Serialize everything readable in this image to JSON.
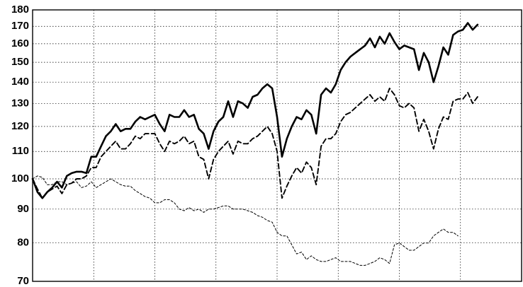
{
  "chart_data": {
    "type": "line",
    "title": "",
    "xlabel": "",
    "ylabel": "",
    "y_scale": "log",
    "ylim": [
      70,
      180
    ],
    "y_ticks": [
      70,
      80,
      90,
      100,
      110,
      120,
      130,
      140,
      150,
      160,
      170,
      180
    ],
    "y_tick_labels": [
      "70",
      "80",
      "90",
      "100",
      "110",
      "120",
      "130",
      "140",
      "150",
      "160",
      "170",
      "180"
    ],
    "x_range": [
      0,
      100
    ],
    "x_vertical_gridlines": 7,
    "grid": true,
    "legend": "none",
    "series": [
      {
        "style": "solid-thick",
        "color": "#000000",
        "x": [
          0,
          1,
          2,
          3,
          4,
          5,
          6,
          7,
          8,
          9,
          10,
          11,
          12,
          13,
          14,
          15,
          16,
          17,
          18,
          19,
          20,
          21,
          22,
          23,
          24,
          25,
          26,
          27,
          28,
          29,
          30,
          31,
          32,
          33,
          34,
          35,
          36,
          37,
          38,
          39,
          40,
          41,
          42,
          43,
          44,
          45,
          46,
          47,
          48,
          49,
          50,
          51,
          52,
          53,
          54,
          55,
          56,
          57,
          58,
          59,
          60,
          61,
          62,
          63,
          64,
          65,
          66,
          67,
          68,
          69,
          70,
          71,
          72,
          73,
          74,
          75,
          76,
          77,
          78,
          79,
          80,
          81,
          82,
          83,
          84,
          85,
          86,
          87,
          88,
          89,
          90,
          91,
          92,
          93,
          94,
          95,
          96,
          97,
          98,
          99,
          100
        ],
        "y": [
          100,
          95.5,
          93.5,
          95.5,
          97,
          99,
          97,
          101,
          102,
          102.5,
          102.5,
          102,
          108,
          108,
          112,
          116,
          118,
          121,
          118,
          119,
          119,
          122,
          124,
          123,
          124,
          125,
          121,
          118,
          125,
          124,
          124,
          127,
          124,
          125,
          119,
          117,
          111,
          118,
          122,
          124,
          131,
          124,
          131,
          130,
          128,
          133,
          134,
          137,
          139,
          137,
          124,
          108,
          115,
          120,
          124,
          123,
          127,
          125,
          117,
          134,
          137,
          135,
          139,
          146,
          150,
          153,
          155,
          157,
          159,
          163,
          158,
          164,
          160,
          166,
          161,
          157,
          159,
          158,
          157,
          146,
          155,
          150,
          140,
          148,
          158,
          154,
          165,
          167,
          168,
          172,
          168,
          171,
          null,
          null,
          null,
          null,
          null,
          null,
          null,
          null,
          null
        ]
      },
      {
        "style": "dashed",
        "color": "#000000",
        "x": [
          0,
          1,
          2,
          3,
          4,
          5,
          6,
          7,
          8,
          9,
          10,
          11,
          12,
          13,
          14,
          15,
          16,
          17,
          18,
          19,
          20,
          21,
          22,
          23,
          24,
          25,
          26,
          27,
          28,
          29,
          30,
          31,
          32,
          33,
          34,
          35,
          36,
          37,
          38,
          39,
          40,
          41,
          42,
          43,
          44,
          45,
          46,
          47,
          48,
          49,
          50,
          51,
          52,
          53,
          54,
          55,
          56,
          57,
          58,
          59,
          60,
          61,
          62,
          63,
          64,
          65,
          66,
          67,
          68,
          69,
          70,
          71,
          72,
          73,
          74,
          75,
          76,
          77,
          78,
          79,
          80,
          81,
          82,
          83,
          84,
          85,
          86,
          87,
          88,
          89,
          90,
          91,
          92,
          93,
          94,
          95,
          96,
          97,
          98,
          99,
          100
        ],
        "y": [
          100,
          96.5,
          93.5,
          95.5,
          96.5,
          97.5,
          95,
          98,
          98.5,
          100,
          100,
          101,
          104,
          104,
          108,
          110,
          112,
          114,
          111,
          111,
          113,
          116,
          115,
          117,
          117,
          117,
          113,
          110,
          114,
          113,
          114,
          116,
          113,
          114,
          108,
          107,
          100,
          107,
          110,
          112,
          114,
          109,
          114,
          113,
          113,
          115,
          116,
          118,
          120,
          117,
          110,
          93.5,
          97.5,
          101,
          104,
          102,
          106,
          104,
          98,
          112,
          115,
          115,
          117,
          122,
          125,
          126,
          128,
          130,
          132,
          134,
          131,
          133,
          131,
          137,
          134,
          129,
          128,
          130,
          128,
          118,
          123,
          118,
          111,
          119,
          124,
          123,
          131,
          132,
          132,
          135,
          130,
          133,
          null,
          null,
          null,
          null,
          null,
          null,
          null,
          null,
          null
        ]
      },
      {
        "style": "dashed-thin",
        "color": "#000000",
        "x": [
          0,
          1,
          2,
          3,
          4,
          5,
          6,
          7,
          8,
          9,
          10,
          11,
          12,
          13,
          14,
          15,
          16,
          17,
          18,
          19,
          20,
          21,
          22,
          23,
          24,
          25,
          26,
          27,
          28,
          29,
          30,
          31,
          32,
          33,
          34,
          35,
          36,
          37,
          38,
          39,
          40,
          41,
          42,
          43,
          44,
          45,
          46,
          47,
          48,
          49,
          50,
          51,
          52,
          53,
          54,
          55,
          56,
          57,
          58,
          59,
          60,
          61,
          62,
          63,
          64,
          65,
          66,
          67,
          68,
          69,
          70,
          71,
          72,
          73,
          74,
          75,
          76,
          77,
          78,
          79,
          80,
          81,
          82,
          83,
          84,
          85,
          86,
          87,
          88,
          89,
          90,
          91,
          92,
          93,
          94,
          95,
          96,
          97,
          98,
          99,
          100
        ],
        "y": [
          100,
          101,
          100.5,
          98,
          98,
          99,
          99,
          98,
          98.5,
          99,
          97,
          97.5,
          99,
          97,
          98,
          99,
          100,
          99,
          98,
          97.5,
          97.5,
          96,
          95,
          94,
          93.5,
          92,
          92,
          93,
          93,
          92,
          90,
          89.5,
          90.5,
          89.5,
          90,
          89,
          90,
          90,
          90.5,
          91,
          91,
          90,
          90,
          90,
          89.5,
          89,
          88,
          87.5,
          86.5,
          86,
          83,
          82,
          82,
          79.5,
          77,
          77.5,
          75.5,
          76.5,
          75.5,
          75,
          75,
          75.5,
          76,
          75,
          75,
          75,
          74.5,
          74,
          74,
          74.5,
          75,
          76,
          75.5,
          74.5,
          79.5,
          80,
          79,
          78,
          78,
          79,
          80,
          80,
          82,
          83,
          84,
          83,
          83,
          82,
          null,
          null,
          null,
          null,
          null,
          null,
          null,
          null,
          null,
          null,
          null,
          null,
          null
        ]
      }
    ]
  }
}
